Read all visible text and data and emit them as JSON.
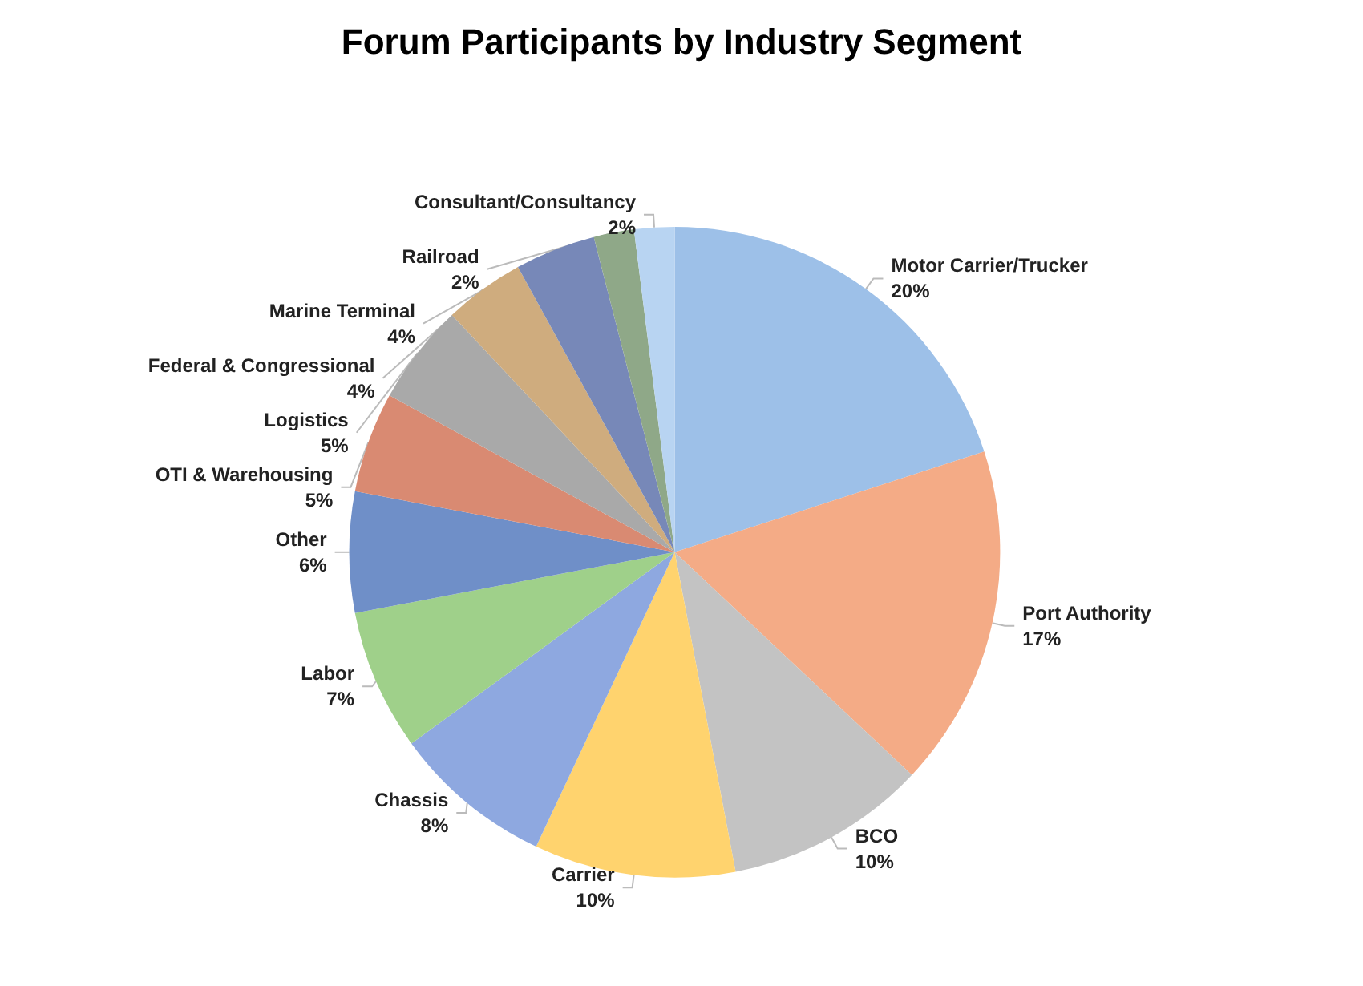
{
  "chart_data": {
    "type": "pie",
    "title": "Forum Participants by Industry Segment",
    "categories": [
      "Motor Carrier/Trucker",
      "Port Authority",
      "BCO",
      "Carrier",
      "Chassis",
      "Labor",
      "Other",
      "OTI & Warehousing",
      "Logistics",
      "Federal & Congressional",
      "Marine Terminal",
      "Railroad",
      "Consultant/Consultancy"
    ],
    "values": [
      20,
      17,
      10,
      10,
      8,
      7,
      6,
      5,
      5,
      4,
      4,
      2,
      2
    ],
    "value_labels": [
      "20%",
      "17%",
      "10%",
      "10%",
      "8%",
      "7%",
      "6%",
      "5%",
      "5%",
      "4%",
      "4%",
      "2%",
      "2%"
    ],
    "colors": [
      "#9dc0e8",
      "#f4ab86",
      "#c3c3c3",
      "#ffd36e",
      "#8ea8e0",
      "#9fd08a",
      "#6f8fc8",
      "#d98a72",
      "#a9a9a9",
      "#cfac7e",
      "#7788b8",
      "#8fa888",
      "#b8d4f2"
    ],
    "legend": false
  }
}
